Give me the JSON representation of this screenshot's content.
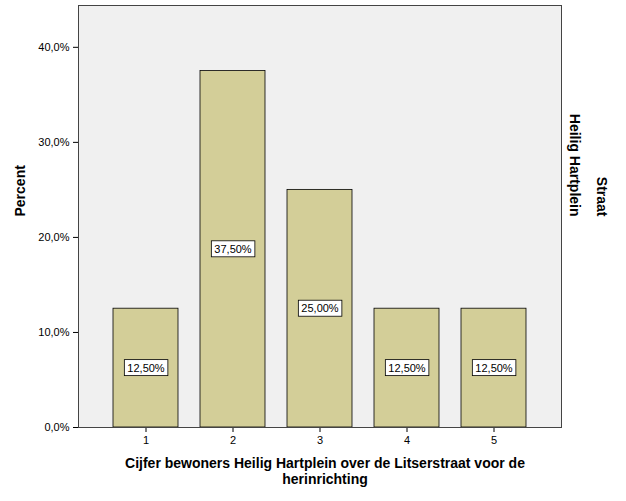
{
  "chart_data": {
    "type": "bar",
    "x_label": "Cijfer bewoners Heilig Hartplein over de Litserstraat voor de herinrichting",
    "y_label": "Percent",
    "annotations": [
      "Heilig Hartplein",
      "Straat"
    ],
    "categories": [
      1,
      2,
      3,
      4,
      5
    ],
    "values": [
      12.5,
      37.5,
      25,
      12.5,
      12.5
    ],
    "value_labels": [
      "12,50%",
      "37,50%",
      "25,00%",
      "12,50%",
      "12,50%"
    ],
    "data_labels": true,
    "color": "#d3ce98",
    "ylim": [
      0,
      44.4
    ],
    "yticks": [
      {
        "value": 0,
        "label": "0,0%"
      },
      {
        "value": 10,
        "label": "10,0%"
      },
      {
        "value": 20,
        "label": "20,0%"
      },
      {
        "value": 30,
        "label": "30,0%"
      },
      {
        "value": 40,
        "label": "40,0%"
      }
    ],
    "grid": false
  }
}
